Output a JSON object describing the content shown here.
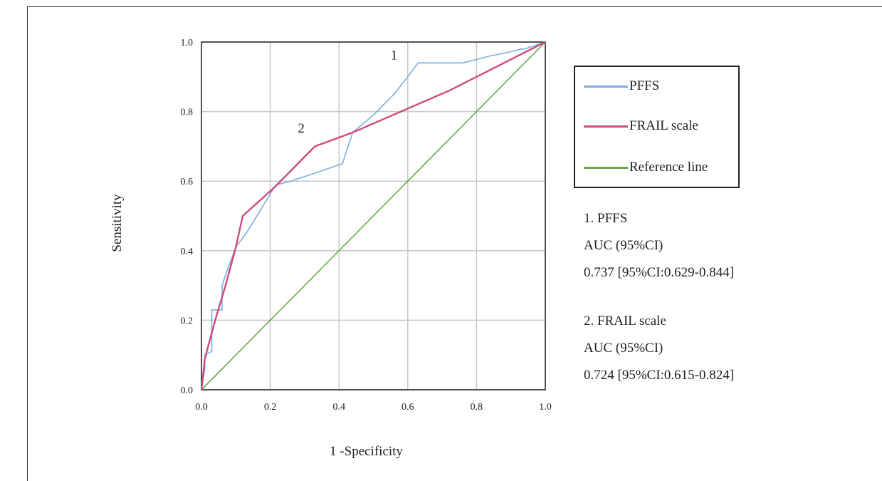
{
  "chart_data": {
    "type": "line",
    "title": "",
    "xlabel": "1 -Specificity",
    "ylabel": "Sensitivity",
    "xlim": [
      0,
      1
    ],
    "ylim": [
      0,
      1
    ],
    "x_ticks": [
      "0.0",
      "0.2",
      "0.4",
      "0.6",
      "0.8",
      "1.0"
    ],
    "y_ticks": [
      "0.0",
      "0.2",
      "0.4",
      "0.6",
      "0.8",
      "1.0"
    ],
    "grid": true,
    "legend_position": "right",
    "series": [
      {
        "name": "PFFS",
        "color": "#7aaee0",
        "x": [
          0,
          0.01,
          0.01,
          0.03,
          0.03,
          0.04,
          0.04,
          0.06,
          0.06,
          0.07,
          0.1,
          0.13,
          0.18,
          0.21,
          0.22,
          0.26,
          0.35,
          0.41,
          0.44,
          0.5,
          0.56,
          0.6,
          0.63,
          0.66,
          0.76,
          0.84,
          0.89,
          0.93,
          0.94,
          0.97,
          1.0
        ],
        "y": [
          0,
          0.06,
          0.1,
          0.11,
          0.23,
          0.23,
          0.23,
          0.23,
          0.3,
          0.33,
          0.41,
          0.45,
          0.53,
          0.58,
          0.59,
          0.6,
          0.63,
          0.65,
          0.74,
          0.79,
          0.85,
          0.9,
          0.94,
          0.94,
          0.94,
          0.96,
          0.97,
          0.98,
          0.98,
          0.99,
          1.0
        ]
      },
      {
        "name": "FRAIL scale",
        "color": "#cf4a7f",
        "x": [
          0,
          0.01,
          0.04,
          0.07,
          0.1,
          0.12,
          0.21,
          0.33,
          0.44,
          0.72,
          1.0
        ],
        "y": [
          0,
          0.09,
          0.2,
          0.3,
          0.41,
          0.5,
          0.58,
          0.7,
          0.74,
          0.86,
          1.0
        ]
      },
      {
        "name": "Reference line",
        "color": "#6aa84f",
        "x": [
          0,
          1
        ],
        "y": [
          0,
          1
        ]
      }
    ],
    "annotations": [
      {
        "text": "1",
        "x": 0.56,
        "y": 0.95
      },
      {
        "text": "2",
        "x": 0.29,
        "y": 0.74
      }
    ]
  },
  "stats": {
    "pffs": {
      "title": "1. PFFS",
      "auc_label": "AUC (95%CI)",
      "auc_value": "0.737 [95%CI:0.629-0.844]"
    },
    "frail": {
      "title": "2. FRAIL scale",
      "auc_label": "AUC (95%CI)",
      "auc_value": "0.724 [95%CI:0.615-0.824]"
    }
  }
}
